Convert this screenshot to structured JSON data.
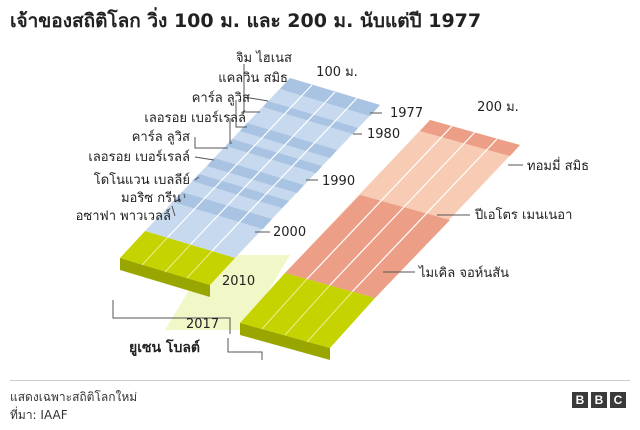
{
  "title": "เจ้าของสถิติโลก วิ่ง 100 ม. และ 200 ม. นับแต่ปี 1977",
  "track_100_label": "100 ม.",
  "track_200_label": "200 ม.",
  "year_labels": [
    "1977",
    "1980",
    "1990",
    "2000",
    "2010",
    "2017"
  ],
  "holders_100": [
    "จิม ไฮเนส",
    "แคลวิน สมิธ",
    "คาร์ล ลูวิส",
    "เลอรอย เบอร์เรลล์",
    "คาร์ล ลูวิส",
    "เลอรอย เบอร์เรลล์",
    "โดโนแวน เบลลีย์",
    "มอริซ กรีน",
    "อซาฟา พาวเวลล์"
  ],
  "holders_200": [
    "ทอมมี่ สมิธ",
    "ปีเอโตร เมนเนอา",
    "ไมเคิล จอห์นสัน"
  ],
  "shared_holder": "ยูเซน โบลต์",
  "footnote": "แสดงเฉพาะสถิติโลกใหม่",
  "source": "ที่มา: IAAF",
  "brand_letters": [
    "B",
    "B",
    "C"
  ],
  "colors": {
    "track_100_light": "#c7d9ee",
    "track_100_dark": "#a9c3e2",
    "track_200_light": "#f7cbb4",
    "track_200_dark": "#ec9f86",
    "bolt": "#c5d400",
    "bolt_era_bg": "#f1f7c6"
  }
}
